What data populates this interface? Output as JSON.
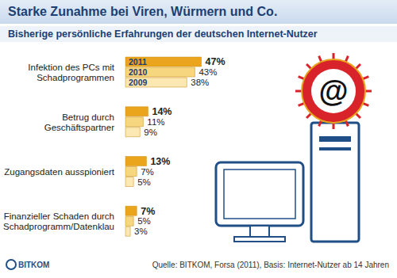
{
  "chart_data": {
    "type": "bar",
    "orientation": "horizontal",
    "title": "Starke Zunahme bei Viren, Würmern und Co.",
    "subtitle": "Bisherige persönliche Erfahrungen der deutschen Internet-Nutzer",
    "categories": [
      "Infektion des PCs mit Schadprogrammen",
      "Betrug durch Geschäftspartner",
      "Zugangsdaten ausspioniert",
      "Finanzieller Schaden durch Schadprogramm/Datenklau"
    ],
    "series": [
      {
        "name": "2011",
        "color": "#eaa51c",
        "values": [
          47,
          14,
          13,
          7
        ],
        "value_labels": [
          "47%",
          "14%",
          "13%",
          "7%"
        ]
      },
      {
        "name": "2010",
        "color": "#f6d67e",
        "values": [
          43,
          11,
          7,
          5
        ],
        "value_labels": [
          "43%",
          "11%",
          "7%",
          "5%"
        ]
      },
      {
        "name": "2009",
        "color": "#fbe8b2",
        "values": [
          38,
          9,
          5,
          3
        ],
        "value_labels": [
          "38%",
          "9%",
          "5%",
          "3%"
        ]
      }
    ],
    "data_labels": true,
    "tick_labels": "y",
    "grid": false,
    "source": "Quelle: BITKOM, Forsa (2011), Basis: Internet-Nutzer ab 14 Jahren",
    "logo": "BITKOM",
    "icon_text": "@"
  }
}
